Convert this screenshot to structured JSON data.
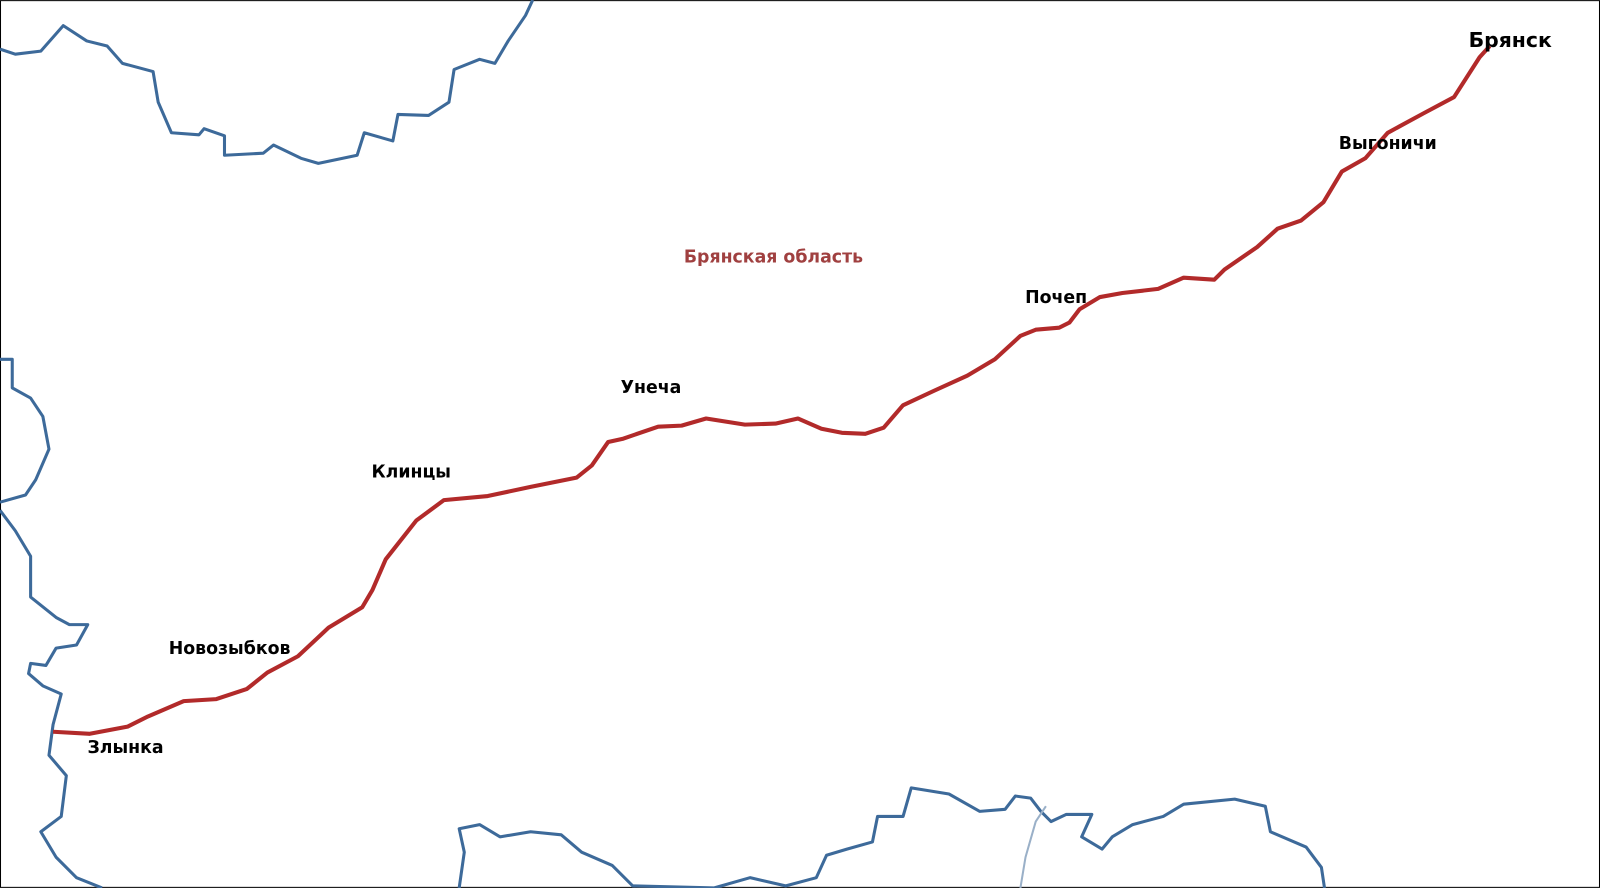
{
  "region": {
    "label": "Брянская область"
  },
  "cities": [
    {
      "label": "Брянск"
    },
    {
      "label": "Выгоничи"
    },
    {
      "label": "Почеп"
    },
    {
      "label": "Унеча"
    },
    {
      "label": "Клинцы"
    },
    {
      "label": "Новозыбков"
    },
    {
      "label": "Злынка"
    }
  ]
}
